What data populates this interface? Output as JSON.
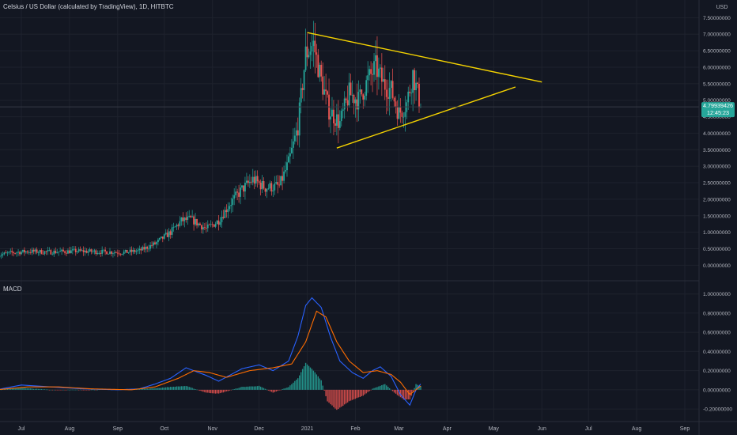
{
  "header": {
    "title": "Celsius / US Dollar (calculated by TradingView), 1D, HITBTC"
  },
  "macd_label": "MACD",
  "currency_label": "USD",
  "price_badge": {
    "value": "4.79939426",
    "countdown": "12:45:23"
  },
  "colors": {
    "background": "#131722",
    "up": "#26a69a",
    "down": "#ef5350",
    "trendline": "#f5d300",
    "macd_line": "#2962ff",
    "signal_line": "#ff6d00",
    "badge": "#26a69a",
    "axis_text": "#b2b5be"
  },
  "chart_data": [
    {
      "type": "candlestick",
      "title": "Celsius / US Dollar (calculated by TradingView), 1D, HITBTC",
      "ylabel": "USD",
      "y_ticks": [
        "7.50000000",
        "7.00000000",
        "6.50000000",
        "6.00000000",
        "5.50000000",
        "5.00000000",
        "4.50000000",
        "4.00000000",
        "3.50000000",
        "3.00000000",
        "2.50000000",
        "2.00000000",
        "1.50000000",
        "1.00000000",
        "0.50000000",
        "0.00000000"
      ],
      "x_ticks": [
        "Jul",
        "Aug",
        "Sep",
        "Oct",
        "Nov",
        "Dec",
        "2021",
        "Feb",
        "Mar",
        "Apr",
        "May",
        "Jun",
        "Jul",
        "Aug",
        "Sep"
      ],
      "ylim": [
        -0.35,
        7.7
      ],
      "last_price": 4.79939426,
      "close_path": [
        [
          "2020-06-15",
          0.3
        ],
        [
          "2020-06-25",
          0.38
        ],
        [
          "2020-07-05",
          0.42
        ],
        [
          "2020-07-20",
          0.4
        ],
        [
          "2020-08-05",
          0.43
        ],
        [
          "2020-08-20",
          0.41
        ],
        [
          "2020-09-05",
          0.39
        ],
        [
          "2020-09-15",
          0.44
        ],
        [
          "2020-09-25",
          0.65
        ],
        [
          "2020-10-05",
          1.0
        ],
        [
          "2020-10-12",
          1.35
        ],
        [
          "2020-10-18",
          1.4
        ],
        [
          "2020-10-28",
          1.1
        ],
        [
          "2020-11-05",
          1.35
        ],
        [
          "2020-11-12",
          1.85
        ],
        [
          "2020-11-20",
          2.3
        ],
        [
          "2020-11-27",
          2.6
        ],
        [
          "2020-12-05",
          2.35
        ],
        [
          "2020-12-14",
          2.4
        ],
        [
          "2020-12-20",
          3.1
        ],
        [
          "2020-12-26",
          4.2
        ],
        [
          "2020-12-31",
          6.4
        ],
        [
          "2021-01-05",
          6.7
        ],
        [
          "2021-01-10",
          5.6
        ],
        [
          "2021-01-15",
          4.7
        ],
        [
          "2021-01-22",
          4.3
        ],
        [
          "2021-01-28",
          5.2
        ],
        [
          "2021-02-03",
          5.0
        ],
        [
          "2021-02-09",
          5.6
        ],
        [
          "2021-02-14",
          6.0
        ],
        [
          "2021-02-19",
          5.5
        ],
        [
          "2021-02-24",
          5.3
        ],
        [
          "2021-03-01",
          4.6
        ],
        [
          "2021-03-06",
          4.9
        ],
        [
          "2021-03-10",
          5.8
        ],
        [
          "2021-03-15",
          4.8
        ]
      ],
      "trendlines": [
        {
          "from": [
            "2021-01-01",
            7.05
          ],
          "to": [
            "2021-06-01",
            5.55
          ]
        },
        {
          "from": [
            "2021-01-20",
            3.55
          ],
          "to": [
            "2021-05-15",
            5.4
          ]
        }
      ]
    },
    {
      "type": "line",
      "title": "MACD",
      "y_ticks": [
        "1.00000000",
        "0.80000000",
        "0.60000000",
        "0.40000000",
        "0.20000000",
        "0.00000000",
        "-0.20000000"
      ],
      "ylim": [
        -0.29,
        1.08
      ],
      "series": [
        {
          "points": [
            [
              "2020-06-15",
              0.0
            ],
            [
              "2020-07-01",
              0.05
            ],
            [
              "2020-07-20",
              0.03
            ],
            [
              "2020-08-10",
              0.01
            ],
            [
              "2020-09-01",
              0.0
            ],
            [
              "2020-09-15",
              0.01
            ],
            [
              "2020-09-25",
              0.06
            ],
            [
              "2020-10-05",
              0.12
            ],
            [
              "2020-10-15",
              0.23
            ],
            [
              "2020-10-28",
              0.15
            ],
            [
              "2020-11-05",
              0.09
            ],
            [
              "2020-11-20",
              0.22
            ],
            [
              "2020-12-01",
              0.26
            ],
            [
              "2020-12-10",
              0.2
            ],
            [
              "2020-12-20",
              0.3
            ],
            [
              "2020-12-26",
              0.56
            ],
            [
              "2020-12-31",
              0.88
            ],
            [
              "2021-01-04",
              0.96
            ],
            [
              "2021-01-10",
              0.86
            ],
            [
              "2021-01-16",
              0.55
            ],
            [
              "2021-01-22",
              0.3
            ],
            [
              "2021-01-30",
              0.18
            ],
            [
              "2021-02-06",
              0.12
            ],
            [
              "2021-02-12",
              0.2
            ],
            [
              "2021-02-17",
              0.24
            ],
            [
              "2021-02-24",
              0.14
            ],
            [
              "2021-03-02",
              -0.05
            ],
            [
              "2021-03-08",
              -0.16
            ],
            [
              "2021-03-12",
              0.0
            ],
            [
              "2021-03-15",
              0.06
            ]
          ]
        },
        {
          "points": [
            [
              "2020-06-15",
              0.0
            ],
            [
              "2020-07-05",
              0.03
            ],
            [
              "2020-07-25",
              0.03
            ],
            [
              "2020-08-15",
              0.01
            ],
            [
              "2020-09-10",
              0.0
            ],
            [
              "2020-09-25",
              0.03
            ],
            [
              "2020-10-10",
              0.12
            ],
            [
              "2020-10-20",
              0.2
            ],
            [
              "2020-10-30",
              0.18
            ],
            [
              "2020-11-10",
              0.13
            ],
            [
              "2020-11-25",
              0.2
            ],
            [
              "2020-12-10",
              0.23
            ],
            [
              "2020-12-22",
              0.27
            ],
            [
              "2020-12-31",
              0.5
            ],
            [
              "2021-01-07",
              0.82
            ],
            [
              "2021-01-13",
              0.76
            ],
            [
              "2021-01-20",
              0.5
            ],
            [
              "2021-01-28",
              0.3
            ],
            [
              "2021-02-06",
              0.18
            ],
            [
              "2021-02-15",
              0.2
            ],
            [
              "2021-02-24",
              0.16
            ],
            [
              "2021-03-02",
              0.08
            ],
            [
              "2021-03-08",
              -0.05
            ],
            [
              "2021-03-15",
              0.04
            ]
          ]
        }
      ],
      "histogram": [
        [
          "2020-06-15",
          0.0
        ],
        [
          "2020-07-01",
          0.02
        ],
        [
          "2020-07-20",
          0.0
        ],
        [
          "2020-08-10",
          0.0
        ],
        [
          "2020-09-20",
          0.01
        ],
        [
          "2020-10-05",
          0.03
        ],
        [
          "2020-10-15",
          0.04
        ],
        [
          "2020-10-28",
          -0.03
        ],
        [
          "2020-11-05",
          -0.04
        ],
        [
          "2020-11-20",
          0.03
        ],
        [
          "2020-12-01",
          0.04
        ],
        [
          "2020-12-10",
          -0.03
        ],
        [
          "2020-12-20",
          0.03
        ],
        [
          "2020-12-26",
          0.12
        ],
        [
          "2020-12-31",
          0.28
        ],
        [
          "2021-01-04",
          0.22
        ],
        [
          "2021-01-10",
          0.1
        ],
        [
          "2021-01-14",
          -0.12
        ],
        [
          "2021-01-20",
          -0.21
        ],
        [
          "2021-01-28",
          -0.12
        ],
        [
          "2021-02-06",
          -0.06
        ],
        [
          "2021-02-12",
          0.01
        ],
        [
          "2021-02-20",
          0.06
        ],
        [
          "2021-02-26",
          -0.03
        ],
        [
          "2021-03-04",
          -0.1
        ],
        [
          "2021-03-08",
          -0.1
        ],
        [
          "2021-03-12",
          0.06
        ],
        [
          "2021-03-15",
          0.04
        ]
      ]
    }
  ]
}
